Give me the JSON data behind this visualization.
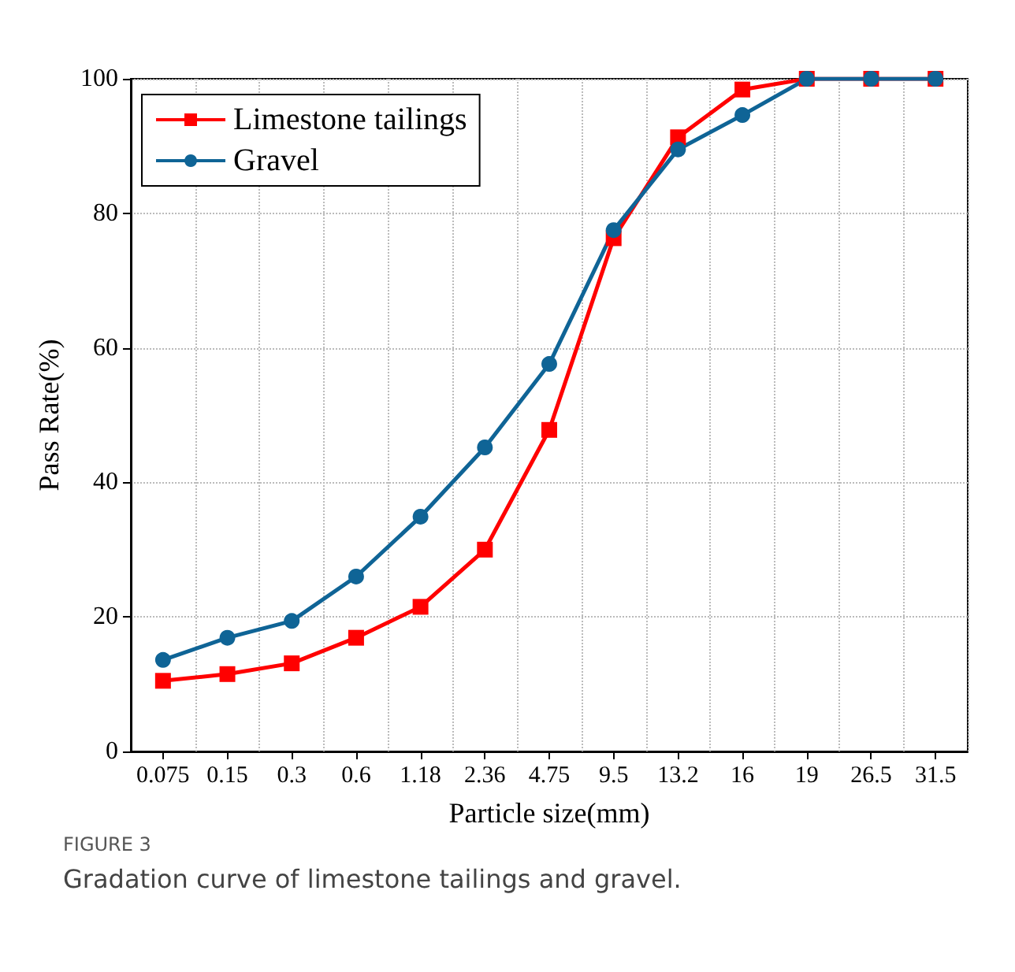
{
  "chart_data": {
    "type": "line",
    "xlabel": "Particle size(mm)",
    "ylabel": "Pass Rate(%)",
    "categories": [
      "0.075",
      "0.15",
      "0.3",
      "0.6",
      "1.18",
      "2.36",
      "4.75",
      "9.5",
      "13.2",
      "16",
      "19",
      "26.5",
      "31.5"
    ],
    "series": [
      {
        "name": "Limestone tailings",
        "color": "#ff0000",
        "marker": "square",
        "values": [
          10.5,
          11.5,
          13.1,
          16.9,
          21.5,
          30,
          47.8,
          76.3,
          91.3,
          98.4,
          100,
          100,
          100
        ]
      },
      {
        "name": "Gravel",
        "color": "#0f6496",
        "marker": "circle",
        "values": [
          13.6,
          16.9,
          19.4,
          26,
          34.9,
          45.2,
          57.6,
          77.5,
          89.5,
          94.6,
          100,
          100,
          100
        ]
      }
    ],
    "ylim": [
      0,
      100
    ],
    "yticks": [
      0,
      20,
      40,
      60,
      80,
      100
    ],
    "grid": true,
    "legend": "top left",
    "line_style": "solid",
    "annotations": [
      "FIGURE 3",
      "Gradation curve of limestone tailings and gravel."
    ]
  }
}
